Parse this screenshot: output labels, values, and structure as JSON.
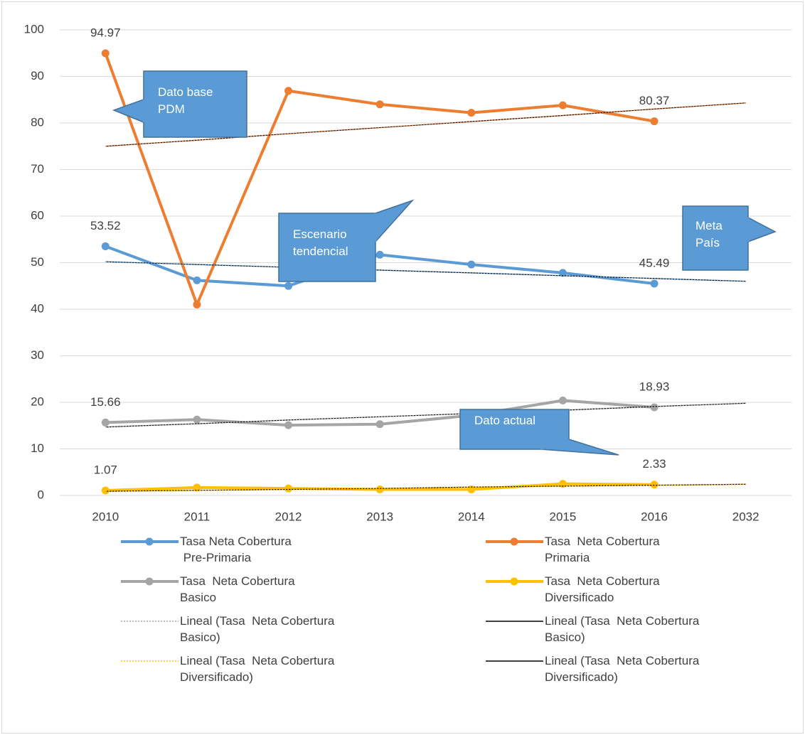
{
  "chart_data": {
    "type": "line",
    "categories": [
      "2010",
      "2011",
      "2012",
      "2013",
      "2014",
      "2015",
      "2016",
      "2032"
    ],
    "ylim": [
      0,
      100
    ],
    "yticks": [
      0,
      10,
      20,
      30,
      40,
      50,
      60,
      70,
      80,
      90,
      100
    ],
    "grid": true,
    "labeled_points": [
      0,
      6
    ],
    "series": [
      {
        "name": "Tasa Neta Cobertura\n Pre-Primaria",
        "color": "#5b9bd5",
        "values": [
          53.52,
          46.2,
          45.0,
          51.7,
          49.6,
          47.8,
          45.49,
          null
        ]
      },
      {
        "name": "Tasa  Neta Cobertura\nPrimaria",
        "color": "#ed7d31",
        "values": [
          94.97,
          41.0,
          86.9,
          84.0,
          82.2,
          83.8,
          80.37,
          null
        ]
      },
      {
        "name": "Tasa  Neta Cobertura\nBasico",
        "color": "#a5a5a5",
        "values": [
          15.66,
          16.3,
          15.1,
          15.3,
          17.2,
          20.4,
          18.93,
          null
        ]
      },
      {
        "name": "Tasa  Neta Cobertura\nDiversificado",
        "color": "#ffc000",
        "values": [
          1.07,
          1.7,
          1.5,
          1.3,
          1.3,
          2.5,
          2.33,
          null
        ]
      }
    ],
    "trends": [
      {
        "color": "#000000",
        "style": "solid",
        "values": [
          50.2,
          49.6,
          49.0,
          48.4,
          47.8,
          47.2,
          46.6,
          46.0
        ]
      },
      {
        "color": "#5b9bd5",
        "style": "dotted",
        "values": [
          50.2,
          49.6,
          49.0,
          48.4,
          47.8,
          47.2,
          46.6,
          46.0
        ]
      },
      {
        "color": "#000000",
        "style": "solid",
        "values": [
          75.0,
          76.3,
          77.7,
          79.0,
          80.3,
          81.6,
          83.0,
          84.3
        ]
      },
      {
        "color": "#ed7d31",
        "style": "dotted",
        "values": [
          75.0,
          76.3,
          77.7,
          79.0,
          80.3,
          81.6,
          83.0,
          84.3
        ]
      },
      {
        "name": "Lineal (Tasa  Neta Cobertura\nBasico)",
        "color": "#a5a5a5",
        "style": "dotted",
        "values": [
          14.7,
          15.4,
          16.2,
          16.9,
          17.6,
          18.3,
          19.1,
          19.8
        ]
      },
      {
        "name": "Lineal (Tasa  Neta Cobertura\nBasico)",
        "color": "#000000",
        "style": "solid",
        "values": [
          14.7,
          15.4,
          16.2,
          16.9,
          17.6,
          18.3,
          19.1,
          19.8
        ]
      },
      {
        "name": "Lineal (Tasa  Neta Cobertura\nDiversificado)",
        "color": "#ffc000",
        "style": "dotted",
        "values": [
          0.9,
          1.1,
          1.3,
          1.5,
          1.8,
          2.0,
          2.2,
          2.4
        ]
      },
      {
        "name": "Lineal (Tasa  Neta Cobertura\nDiversificado)",
        "color": "#000000",
        "style": "solid",
        "values": [
          0.9,
          1.1,
          1.3,
          1.5,
          1.8,
          2.0,
          2.2,
          2.4
        ]
      }
    ],
    "annotations": [
      {
        "text": "Dato base\nPDM"
      },
      {
        "text": "Escenario\ntendencial"
      },
      {
        "text": "Meta\nPaís"
      },
      {
        "text": "Dato actual"
      }
    ]
  }
}
